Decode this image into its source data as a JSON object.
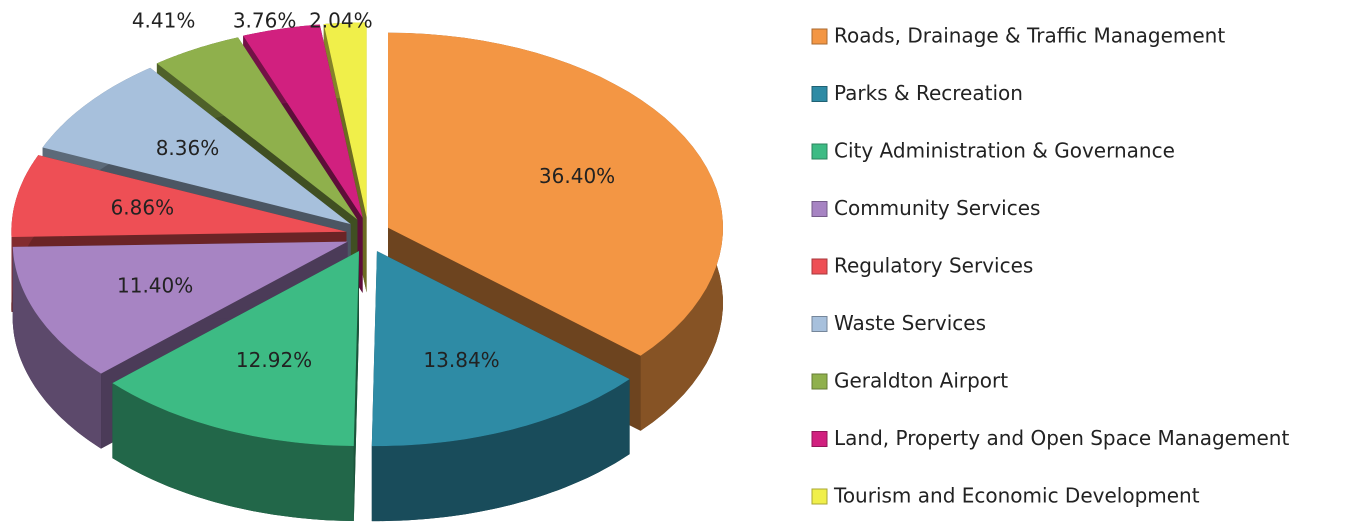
{
  "chart_data": {
    "type": "pie",
    "categories": [
      "Roads, Drainage & Traffic Management",
      "Parks & Recreation",
      "City Administration & Governance",
      "Community Services",
      "Regulatory Services",
      "Waste Services",
      "Geraldton Airport",
      "Land, Property and Open Space Management",
      "Tourism and Economic Development"
    ],
    "values": [
      36.4,
      13.84,
      12.92,
      11.4,
      6.86,
      8.36,
      4.41,
      3.76,
      2.04
    ],
    "value_labels": [
      "36.40%",
      "13.84%",
      "12.92%",
      "11.40%",
      "6.86%",
      "8.36%",
      "4.41%",
      "3.76%",
      "2.04%"
    ],
    "colors": [
      "#f39644",
      "#2e8ba5",
      "#3dbb84",
      "#a784c3",
      "#ee4f55",
      "#a7c0dc",
      "#8fb04c",
      "#d1207f",
      "#f0ef4a"
    ],
    "legend": "right"
  }
}
